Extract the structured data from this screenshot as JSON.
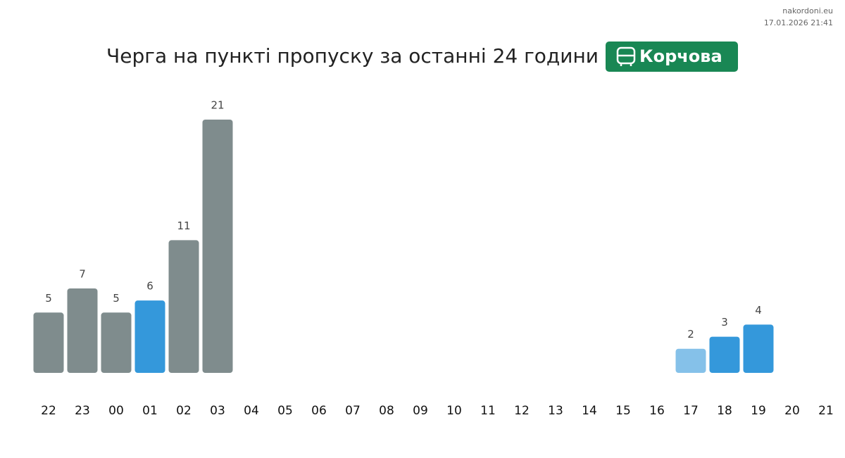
{
  "header": {
    "site": "nakordoni.eu",
    "timestamp": "17.01.2026 21:41"
  },
  "chart_data": {
    "type": "bar",
    "title": "Черга на пункті пропуску за останні 24 години",
    "badge": "Корчова",
    "categories": [
      "22",
      "23",
      "00",
      "01",
      "02",
      "03",
      "04",
      "05",
      "06",
      "07",
      "08",
      "09",
      "10",
      "11",
      "12",
      "13",
      "14",
      "15",
      "16",
      "17",
      "18",
      "19",
      "20",
      "21"
    ],
    "values": [
      5,
      7,
      5,
      6,
      11,
      21,
      null,
      null,
      null,
      null,
      null,
      null,
      null,
      null,
      null,
      null,
      null,
      null,
      null,
      2,
      3,
      4,
      null,
      null
    ],
    "colors": [
      "#7f8c8d",
      "#7f8c8d",
      "#7f8c8d",
      "#3498db",
      "#7f8c8d",
      "#7f8c8d",
      null,
      null,
      null,
      null,
      null,
      null,
      null,
      null,
      null,
      null,
      null,
      null,
      null,
      "#85c1e9",
      "#3498db",
      "#3498db",
      null,
      null
    ],
    "badge_color": "#198754"
  }
}
